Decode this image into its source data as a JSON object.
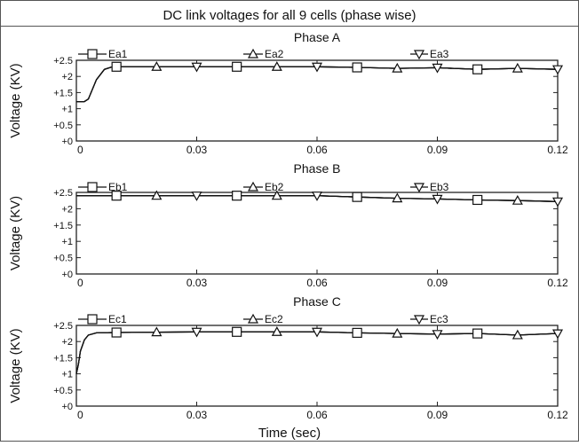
{
  "title": "DC link voltages for all 9 cells (phase wise)",
  "xlabel": "Time (sec)",
  "chart_data": [
    {
      "type": "line",
      "title": "Phase A",
      "ylabel": "Voltage (KV)",
      "xlim": [
        0,
        0.12
      ],
      "ylim": [
        0,
        2.5
      ],
      "xticks": [
        0,
        0.03,
        0.06,
        0.09,
        0.12
      ],
      "xtick_labels": [
        "0",
        "0.03",
        "0.06",
        "0.09",
        "0.12"
      ],
      "yticks": [
        0,
        0.5,
        1,
        1.5,
        2,
        2.5
      ],
      "ytick_labels": [
        "+0",
        "+0.5",
        "+1",
        "+1.5",
        "+2",
        "+2.5"
      ],
      "series": [
        {
          "name": "Ea1",
          "marker": "square",
          "x": [
            0,
            0.002,
            0.003,
            0.005,
            0.007,
            0.009,
            0.02,
            0.04,
            0.06,
            0.07,
            0.08,
            0.09,
            0.1,
            0.11,
            0.12
          ],
          "y": [
            1.22,
            1.22,
            1.3,
            1.9,
            2.22,
            2.3,
            2.3,
            2.3,
            2.3,
            2.28,
            2.25,
            2.27,
            2.22,
            2.25,
            2.22
          ]
        },
        {
          "name": "Ea2",
          "marker": "triangle-up",
          "x": [
            0,
            0.002,
            0.003,
            0.005,
            0.007,
            0.009,
            0.02,
            0.04,
            0.06,
            0.07,
            0.08,
            0.09,
            0.1,
            0.11,
            0.12
          ],
          "y": [
            1.22,
            1.22,
            1.3,
            1.9,
            2.22,
            2.3,
            2.3,
            2.3,
            2.3,
            2.28,
            2.25,
            2.27,
            2.22,
            2.25,
            2.22
          ]
        },
        {
          "name": "Ea3",
          "marker": "triangle-down",
          "x": [
            0,
            0.002,
            0.003,
            0.005,
            0.007,
            0.009,
            0.02,
            0.04,
            0.06,
            0.07,
            0.08,
            0.09,
            0.1,
            0.11,
            0.12
          ],
          "y": [
            1.22,
            1.22,
            1.3,
            1.9,
            2.22,
            2.3,
            2.3,
            2.3,
            2.3,
            2.28,
            2.25,
            2.27,
            2.22,
            2.25,
            2.22
          ]
        }
      ]
    },
    {
      "type": "line",
      "title": "Phase B",
      "ylabel": "Voltage (KV)",
      "xlim": [
        0,
        0.12
      ],
      "ylim": [
        0,
        2.5
      ],
      "xticks": [
        0,
        0.03,
        0.06,
        0.09,
        0.12
      ],
      "xtick_labels": [
        "0",
        "0.03",
        "0.06",
        "0.09",
        "0.12"
      ],
      "yticks": [
        0,
        0.5,
        1,
        1.5,
        2,
        2.5
      ],
      "ytick_labels": [
        "+0",
        "+0.5",
        "+1",
        "+1.5",
        "+2",
        "+2.5"
      ],
      "series": [
        {
          "name": "Eb1",
          "marker": "square",
          "x": [
            0,
            0.02,
            0.04,
            0.06,
            0.07,
            0.08,
            0.09,
            0.1,
            0.11,
            0.12
          ],
          "y": [
            2.4,
            2.4,
            2.4,
            2.4,
            2.36,
            2.32,
            2.3,
            2.27,
            2.25,
            2.22
          ]
        },
        {
          "name": "Eb2",
          "marker": "triangle-up",
          "x": [
            0,
            0.02,
            0.04,
            0.06,
            0.07,
            0.08,
            0.09,
            0.1,
            0.11,
            0.12
          ],
          "y": [
            2.4,
            2.4,
            2.4,
            2.4,
            2.36,
            2.32,
            2.3,
            2.27,
            2.25,
            2.22
          ]
        },
        {
          "name": "Eb3",
          "marker": "triangle-down",
          "x": [
            0,
            0.02,
            0.04,
            0.06,
            0.07,
            0.08,
            0.09,
            0.1,
            0.11,
            0.12
          ],
          "y": [
            2.4,
            2.4,
            2.4,
            2.4,
            2.36,
            2.32,
            2.3,
            2.27,
            2.25,
            2.22
          ]
        }
      ]
    },
    {
      "type": "line",
      "title": "Phase C",
      "ylabel": "Voltage (KV)",
      "xlim": [
        0,
        0.12
      ],
      "ylim": [
        0,
        2.5
      ],
      "xticks": [
        0,
        0.03,
        0.06,
        0.09,
        0.12
      ],
      "xtick_labels": [
        "0",
        "0.03",
        "0.06",
        "0.09",
        "0.12"
      ],
      "yticks": [
        0,
        0.5,
        1,
        1.5,
        2,
        2.5
      ],
      "ytick_labels": [
        "+0",
        "+0.5",
        "+1",
        "+1.5",
        "+2",
        "+2.5"
      ],
      "series": [
        {
          "name": "Ec1",
          "marker": "square",
          "x": [
            0,
            0.0005,
            0.001,
            0.002,
            0.003,
            0.005,
            0.01,
            0.03,
            0.05,
            0.06,
            0.07,
            0.08,
            0.09,
            0.1,
            0.11,
            0.12
          ],
          "y": [
            1.0,
            1.3,
            1.7,
            2.05,
            2.2,
            2.27,
            2.28,
            2.3,
            2.3,
            2.3,
            2.27,
            2.25,
            2.23,
            2.25,
            2.2,
            2.25
          ]
        },
        {
          "name": "Ec2",
          "marker": "triangle-up",
          "x": [
            0,
            0.0005,
            0.001,
            0.002,
            0.003,
            0.005,
            0.01,
            0.03,
            0.05,
            0.06,
            0.07,
            0.08,
            0.09,
            0.1,
            0.11,
            0.12
          ],
          "y": [
            1.0,
            1.3,
            1.7,
            2.05,
            2.2,
            2.27,
            2.28,
            2.3,
            2.3,
            2.3,
            2.27,
            2.25,
            2.23,
            2.25,
            2.2,
            2.25
          ]
        },
        {
          "name": "Ec3",
          "marker": "triangle-down",
          "x": [
            0,
            0.0005,
            0.001,
            0.002,
            0.003,
            0.005,
            0.01,
            0.03,
            0.05,
            0.06,
            0.07,
            0.08,
            0.09,
            0.1,
            0.11,
            0.12
          ],
          "y": [
            1.0,
            1.3,
            1.7,
            2.05,
            2.2,
            2.27,
            2.28,
            2.3,
            2.3,
            2.3,
            2.27,
            2.25,
            2.23,
            2.25,
            2.2,
            2.25
          ]
        }
      ]
    }
  ],
  "markers": [
    {
      "panel": 0,
      "series": 0,
      "x": [
        0.01,
        0.04,
        0.07,
        0.1
      ]
    },
    {
      "panel": 0,
      "series": 1,
      "x": [
        0.02,
        0.05,
        0.08,
        0.11
      ]
    },
    {
      "panel": 0,
      "series": 2,
      "x": [
        0.03,
        0.06,
        0.09,
        0.12
      ]
    },
    {
      "panel": 1,
      "series": 0,
      "x": [
        0.01,
        0.04,
        0.07,
        0.1
      ]
    },
    {
      "panel": 1,
      "series": 1,
      "x": [
        0.02,
        0.05,
        0.08,
        0.11
      ]
    },
    {
      "panel": 1,
      "series": 2,
      "x": [
        0.03,
        0.06,
        0.09,
        0.12
      ]
    },
    {
      "panel": 2,
      "series": 0,
      "x": [
        0.01,
        0.04,
        0.07,
        0.1
      ]
    },
    {
      "panel": 2,
      "series": 1,
      "x": [
        0.02,
        0.05,
        0.08,
        0.11
      ]
    },
    {
      "panel": 2,
      "series": 2,
      "x": [
        0.03,
        0.06,
        0.09,
        0.12
      ]
    }
  ],
  "colors": {
    "line": "#111111",
    "frame": "#222222",
    "background": "#ffffff"
  }
}
